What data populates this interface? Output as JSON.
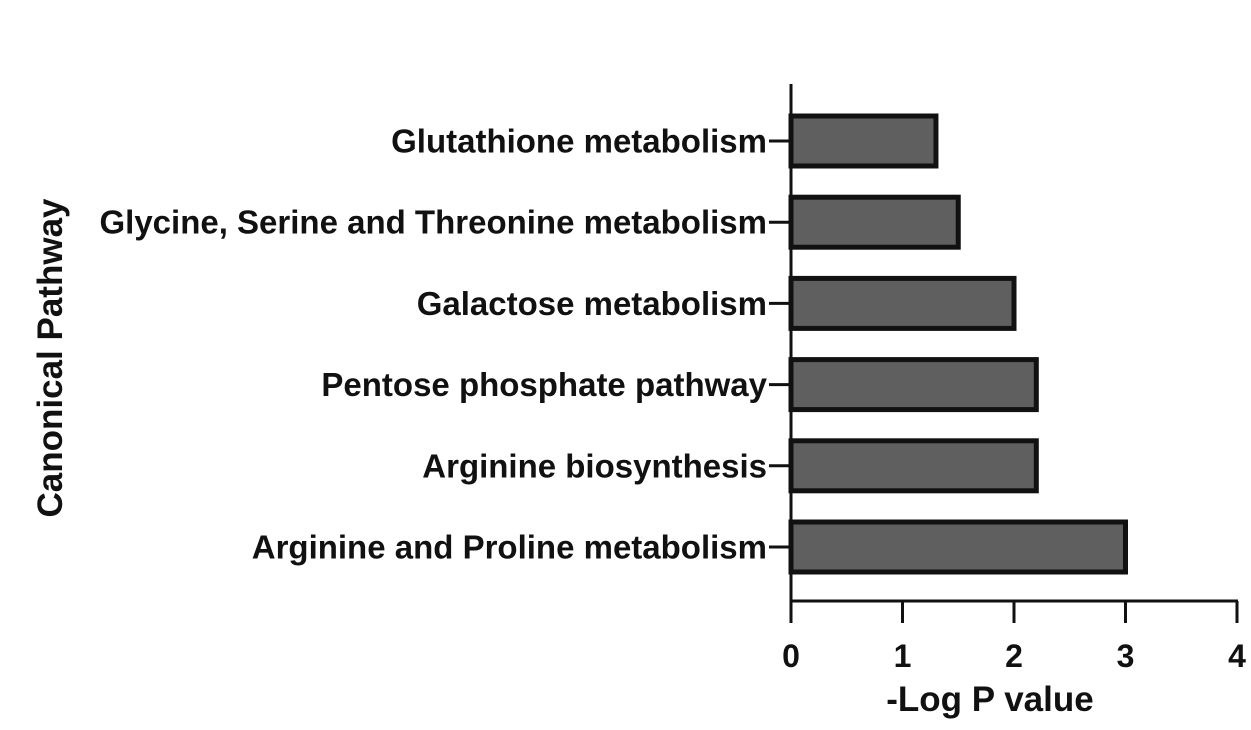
{
  "chart_data": {
    "type": "bar",
    "orientation": "horizontal",
    "categories": [
      "Glutathione metabolism",
      "Glycine, Serine and Threonine metabolism",
      "Galactose metabolism",
      "Pentose phosphate pathway",
      "Arginine biosynthesis",
      "Arginine and Proline metabolism"
    ],
    "values": [
      1.3,
      1.5,
      2.0,
      2.2,
      2.2,
      3.0
    ],
    "xlabel": "-Log P value",
    "ylabel": "Canonical Pathway",
    "xlim": [
      0,
      4
    ],
    "xticks": [
      0,
      1,
      2,
      3,
      4
    ],
    "bar_color": "#5f5f5f",
    "edge_color": "#111111",
    "grid": false,
    "legend": "none"
  }
}
